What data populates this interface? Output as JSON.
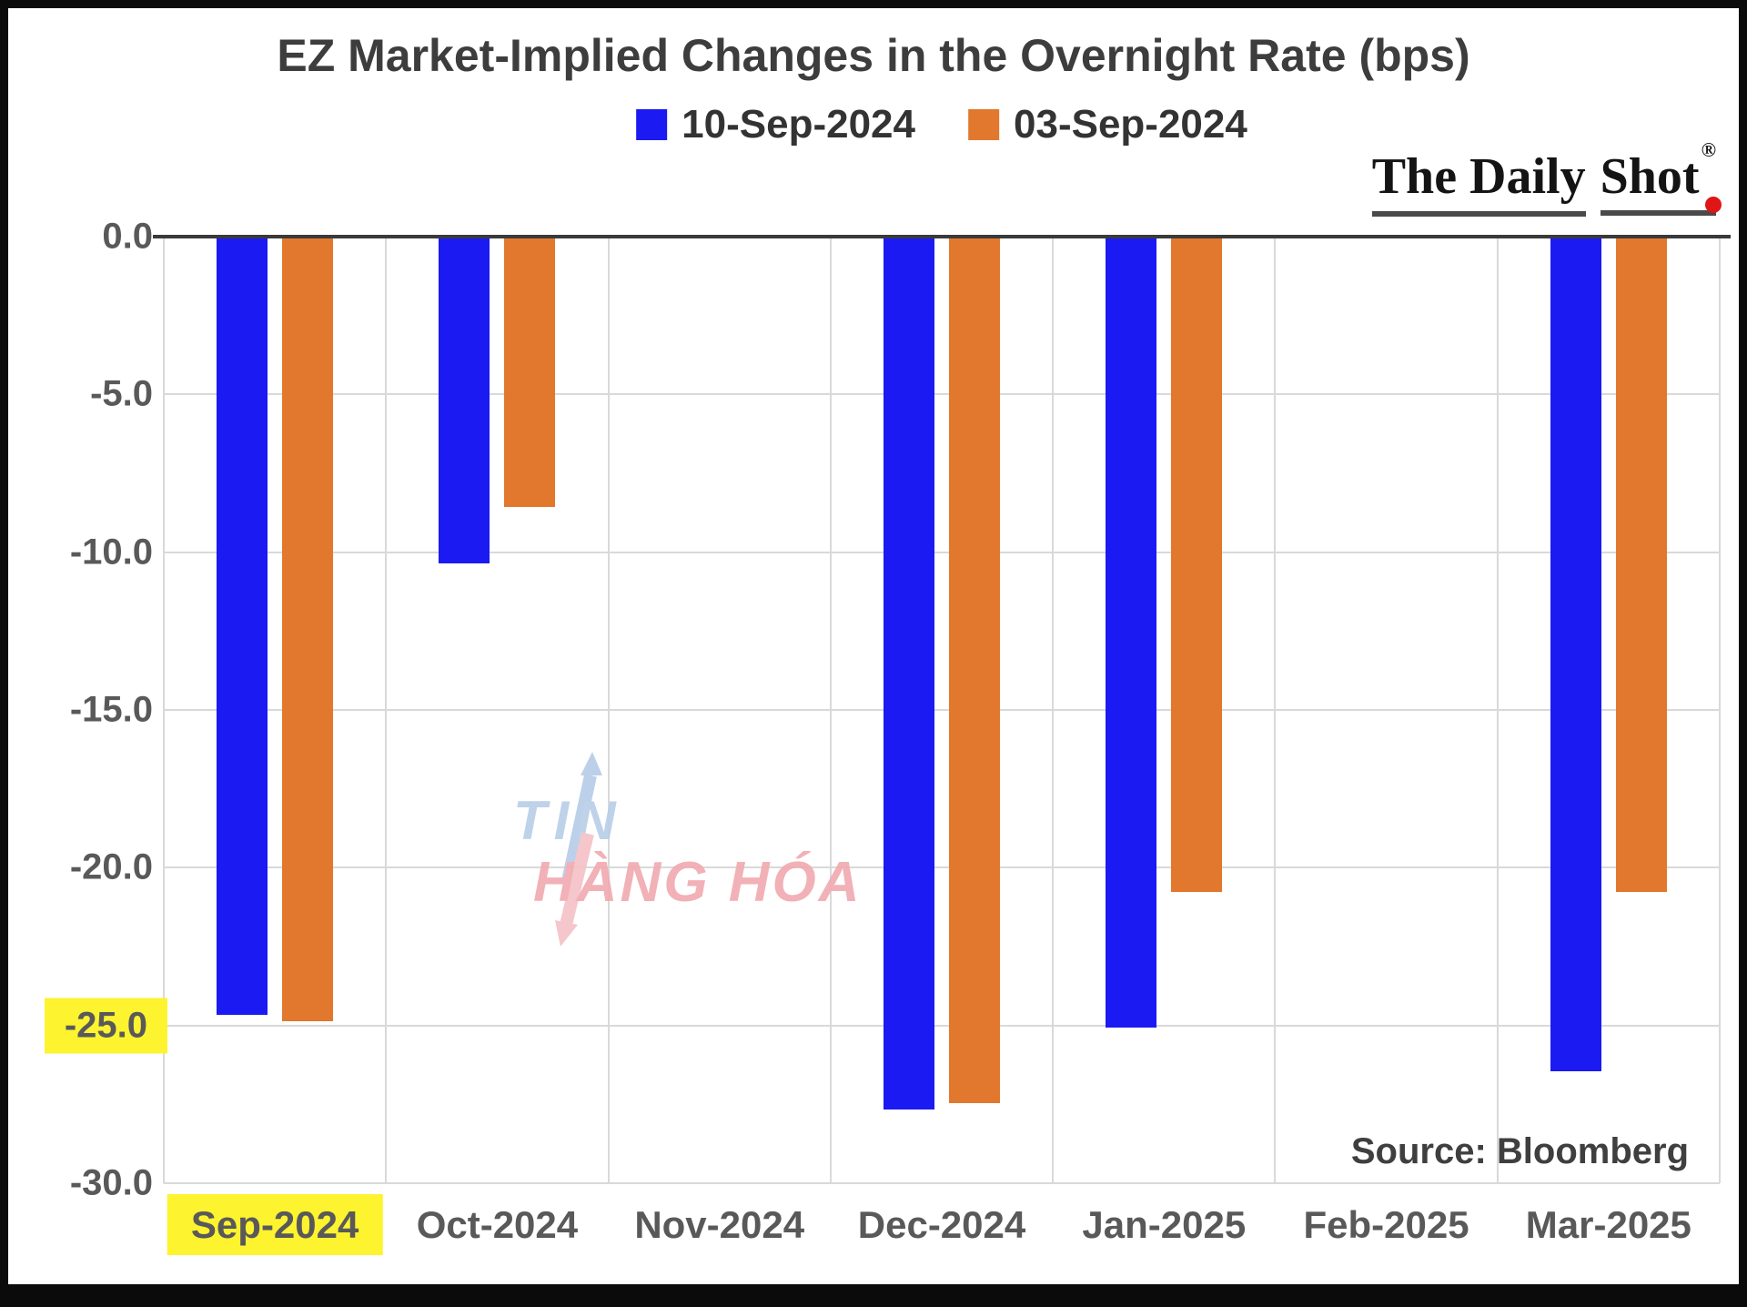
{
  "title": "EZ Market-Implied Changes in the Overnight Rate (bps)",
  "logo": {
    "part1": "The Daily",
    "part2": "Shot",
    "reg": "®"
  },
  "source_text": "Source: Bloomberg",
  "watermark": {
    "line1": "TIN",
    "line2": "HÀNG HÓA"
  },
  "colors": {
    "series_blue": "#1b1af2",
    "series_orange": "#e2782d",
    "highlight_yellow": "#fdf32f",
    "logo_dot_red": "#e01616",
    "watermark_blue": "#b9cfe9",
    "watermark_red": "#f0abb1",
    "gridline_gray": "#d9d9d9",
    "axis_text_gray": "#595959"
  },
  "chart_data": {
    "type": "bar",
    "title": "EZ Market-Implied Changes in the Overnight Rate (bps)",
    "categories": [
      "Sep-2024",
      "Oct-2024",
      "Nov-2024",
      "Dec-2024",
      "Jan-2025",
      "Feb-2025",
      "Mar-2025"
    ],
    "series": [
      {
        "name": "10-Sep-2024",
        "color": "#1b1af2",
        "values": [
          -24.6,
          -10.3,
          null,
          -27.6,
          -25.0,
          null,
          -26.4
        ]
      },
      {
        "name": "03-Sep-2024",
        "color": "#e2782d",
        "values": [
          -24.8,
          -8.5,
          null,
          -27.4,
          -20.7,
          null,
          -20.7
        ]
      }
    ],
    "ylabel": "",
    "xlabel": "",
    "ylim": [
      -30,
      0
    ],
    "yticks": [
      "0.0",
      "-5.0",
      "-10.0",
      "-15.0",
      "-20.0",
      "-25.0",
      "-30.0"
    ],
    "highlighted_ytick": "-25.0",
    "highlighted_category": "Sep-2024",
    "legend_position": "top-center",
    "grid": true
  }
}
